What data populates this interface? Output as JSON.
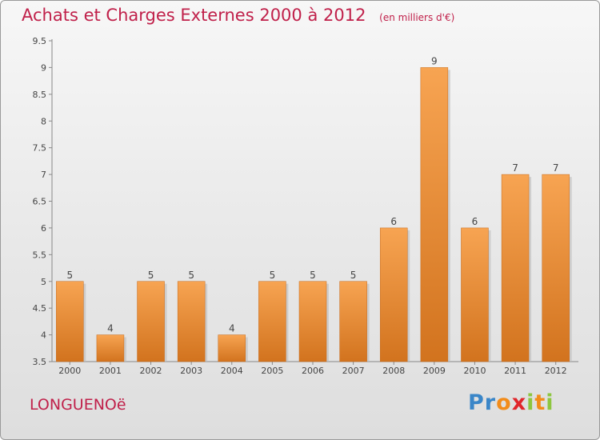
{
  "chart_data": {
    "type": "bar",
    "title": "Achats et Charges Externes 2000 à 2012",
    "subtitle": "(en milliers d'€)",
    "categories": [
      "2000",
      "2001",
      "2002",
      "2003",
      "2004",
      "2005",
      "2006",
      "2007",
      "2008",
      "2009",
      "2010",
      "2011",
      "2012"
    ],
    "values": [
      5,
      4,
      5,
      5,
      4,
      5,
      5,
      5,
      6,
      9,
      6,
      7,
      7
    ],
    "value_labels": [
      "5",
      "4",
      "5",
      "5",
      "4",
      "5",
      "5",
      "5",
      "6",
      "9",
      "6",
      "7",
      "7"
    ],
    "ylim": [
      3.5,
      9.5
    ],
    "yticks": [
      "3.5",
      "4",
      "4.5",
      "5",
      "5.5",
      "6",
      "6.5",
      "7",
      "7.5",
      "8",
      "8.5",
      "9",
      "9.5"
    ],
    "grid": false,
    "bar_color_top": "#f7a452",
    "bar_color_bottom": "#d2731e"
  },
  "footer": {
    "commune": "LONGUENOë",
    "logo_letters": [
      "P",
      "r",
      "o",
      "x",
      "i",
      "t",
      "i"
    ],
    "logo_colors": [
      "#3a86c8",
      "#3a86c8",
      "#f28c1a",
      "#e0262b",
      "#8dc63f",
      "#f28c1a",
      "#8dc63f"
    ]
  }
}
